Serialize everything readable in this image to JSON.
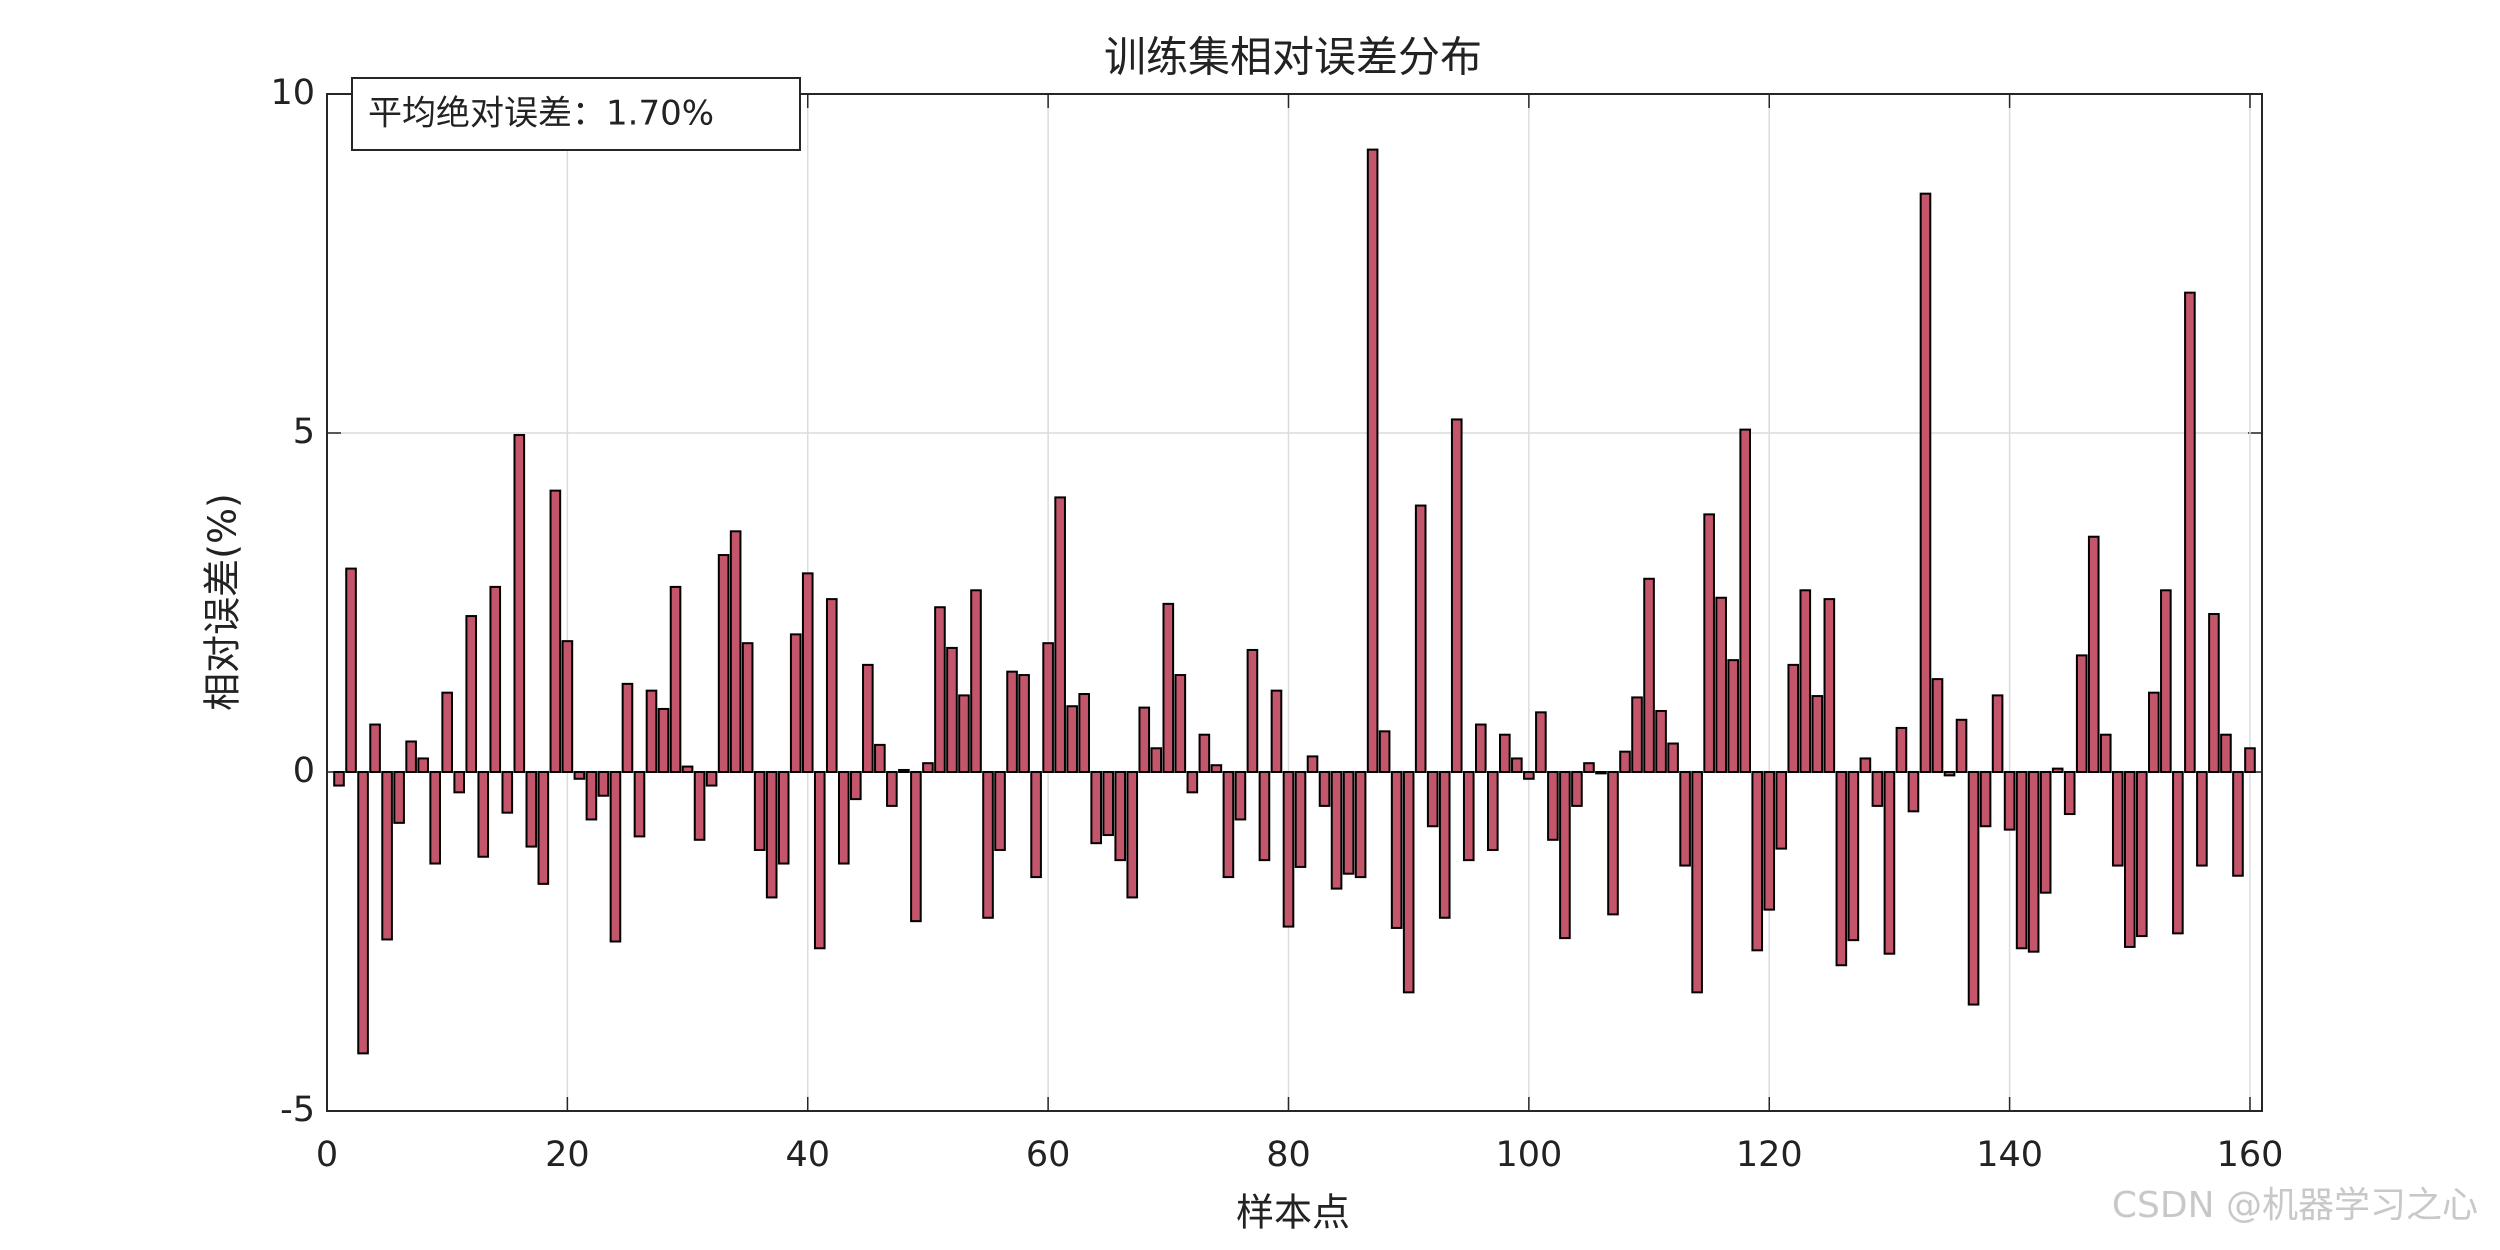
{
  "chart_data": {
    "type": "bar",
    "title": "训练集相对误差分布",
    "xlabel": "样本点",
    "ylabel": "相对误差(%)",
    "annotation": "平均绝对误差：1.70%",
    "watermark": "CSDN @机器学习之心",
    "color": "#c4566c",
    "edgecolor": "#000000",
    "grid": true,
    "x": [
      1,
      2,
      3,
      4,
      5,
      6,
      7,
      8,
      9,
      10,
      11,
      12,
      13,
      14,
      15,
      16,
      17,
      18,
      19,
      20,
      21,
      22,
      23,
      24,
      25,
      26,
      27,
      28,
      29,
      30,
      31,
      32,
      33,
      34,
      35,
      36,
      37,
      38,
      39,
      40,
      41,
      42,
      43,
      44,
      45,
      46,
      47,
      48,
      49,
      50,
      51,
      52,
      53,
      54,
      55,
      56,
      57,
      58,
      59,
      60,
      61,
      62,
      63,
      64,
      65,
      66,
      67,
      68,
      69,
      70,
      71,
      72,
      73,
      74,
      75,
      76,
      77,
      78,
      79,
      80,
      81,
      82,
      83,
      84,
      85,
      86,
      87,
      88,
      89,
      90,
      91,
      92,
      93,
      94,
      95,
      96,
      97,
      98,
      99,
      100,
      101,
      102,
      103,
      104,
      105,
      106,
      107,
      108,
      109,
      110,
      111,
      112,
      113,
      114,
      115,
      116,
      117,
      118,
      119,
      120,
      121,
      122,
      123,
      124,
      125,
      126,
      127,
      128,
      129,
      130,
      131,
      132,
      133,
      134,
      135,
      136,
      137,
      138,
      139,
      140,
      141,
      142,
      143,
      144,
      145,
      146,
      147,
      148,
      149,
      150,
      151,
      152,
      153,
      154,
      155,
      156,
      157,
      158,
      159,
      160
    ],
    "values": [
      -0.2,
      3.0,
      -4.15,
      0.7,
      -2.47,
      -0.75,
      0.45,
      0.2,
      -1.35,
      1.17,
      -0.3,
      2.3,
      -1.25,
      2.73,
      -0.6,
      4.97,
      -1.1,
      -1.65,
      4.15,
      1.93,
      -0.1,
      -0.7,
      -0.35,
      -2.5,
      1.3,
      -0.95,
      1.2,
      0.93,
      2.73,
      0.08,
      -1.0,
      -0.2,
      3.2,
      3.55,
      1.9,
      -1.15,
      -1.85,
      -1.35,
      2.03,
      2.93,
      -2.6,
      2.55,
      -1.35,
      -0.4,
      1.58,
      0.4,
      -0.5,
      0.03,
      -2.2,
      0.13,
      2.43,
      1.83,
      1.13,
      2.68,
      -2.15,
      -1.15,
      1.48,
      1.43,
      -1.55,
      1.9,
      4.05,
      0.97,
      1.15,
      -1.05,
      -0.93,
      -1.3,
      -1.85,
      0.95,
      0.35,
      2.48,
      1.43,
      -0.3,
      0.55,
      0.1,
      -1.55,
      -0.7,
      1.8,
      -1.3,
      1.2,
      -2.28,
      -1.4,
      0.23,
      -0.5,
      -1.72,
      -1.5,
      -1.55,
      9.18,
      0.6,
      -2.3,
      -3.25,
      3.93,
      -0.8,
      -2.15,
      5.2,
      -1.3,
      0.7,
      -1.15,
      0.55,
      0.2,
      -0.1,
      0.88,
      -1.0,
      -2.45,
      -0.5,
      0.13,
      -0.02,
      -2.1,
      0.3,
      1.1,
      2.85,
      0.9,
      0.42,
      -1.38,
      -3.25,
      3.8,
      2.57,
      1.65,
      5.05,
      -2.63,
      -2.03,
      -1.13,
      1.58,
      2.68,
      1.12,
      2.55,
      -2.85,
      -2.48,
      0.2,
      -0.5,
      -2.68,
      0.65,
      -0.58,
      8.53,
      1.37,
      -0.05,
      0.77,
      -3.43,
      -0.8,
      1.13,
      -0.85,
      -2.6,
      -2.65,
      -1.78,
      0.05,
      -0.62,
      1.72,
      3.47,
      0.55,
      -1.38,
      -2.58,
      -2.42,
      1.17,
      2.68,
      -2.38,
      7.07,
      -1.38,
      2.33,
      0.55,
      -1.53,
      0.35
    ],
    "xlim": [
      0,
      161
    ],
    "ylim": [
      -5,
      10
    ],
    "xticks": [
      0,
      20,
      40,
      60,
      80,
      100,
      120,
      140,
      160
    ],
    "yticks": [
      -5,
      0,
      5,
      10
    ]
  }
}
